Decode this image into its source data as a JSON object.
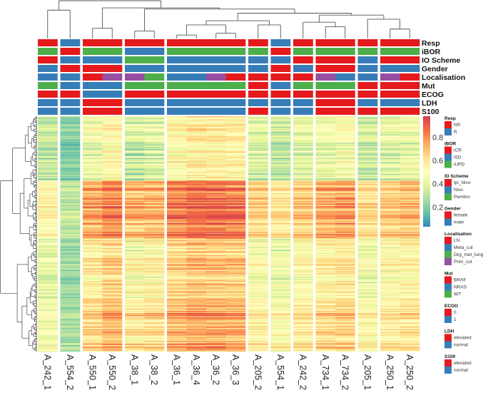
{
  "chart_data": {
    "type": "heatmap",
    "title": "",
    "columns": [
      "A_242_1",
      "A_554_2",
      "A_550_1",
      "A_550_2",
      "A_38_1",
      "A_38_2",
      "A_36_1",
      "A_36_4",
      "A_36_2",
      "A_36_3",
      "A_205_2",
      "A_554_1",
      "A_242_2",
      "A_734_1",
      "A_734_2",
      "A_205_1",
      "A_250_1",
      "A_250_2"
    ],
    "column_groups": [
      [
        "A_242_1"
      ],
      [
        "A_554_2"
      ],
      [
        "A_550_1",
        "A_550_2"
      ],
      [
        "A_38_1",
        "A_38_2"
      ],
      [
        "A_36_1",
        "A_36_4",
        "A_36_2",
        "A_36_3"
      ],
      [
        "A_205_2"
      ],
      [
        "A_554_1"
      ],
      [
        "A_242_2"
      ],
      [
        "A_734_1",
        "A_734_2"
      ],
      [
        "A_205_1"
      ],
      [
        "A_250_1",
        "A_250_2"
      ]
    ],
    "column_mean_expression": [
      0.42,
      0.25,
      0.58,
      0.66,
      0.52,
      0.55,
      0.66,
      0.7,
      0.7,
      0.68,
      0.5,
      0.45,
      0.52,
      0.57,
      0.6,
      0.47,
      0.52,
      0.55
    ],
    "column_dendrogram": {
      "h": 10,
      "c": [
        {
          "h": 7.5,
          "c": [
            "A_242_1",
            "A_554_2"
          ]
        },
        {
          "h": 8.1,
          "c": [
            {
              "h": 2.7,
              "c": [
                "A_550_1",
                "A_550_2"
              ]
            },
            {
              "h": 7.8,
              "c": [
                {
                  "h": 2.0,
                  "c": [
                    "A_38_1",
                    "A_38_2"
                  ]
                },
                {
                  "h": 6.7,
                  "c": [
                    {
                      "h": 4.7,
                      "c": [
                        {
                          "h": 3.6,
                          "c": [
                            {
                              "h": 0.9,
                              "c": [
                                "A_36_1",
                                "A_36_4"
                              ]
                            },
                            {
                              "h": 1.4,
                              "c": [
                                "A_36_2",
                                "A_36_3"
                              ]
                            }
                          ]
                        },
                        {
                          "h": 3.6,
                          "c": [
                            "A_205_2",
                            "A_554_1"
                          ]
                        }
                      ]
                    },
                    {
                      "h": 6.2,
                      "c": [
                        {
                          "h": 4.3,
                          "c": [
                            "A_242_2",
                            {
                              "h": 3.1,
                              "c": [
                                "A_734_1",
                                "A_734_2"
                              ]
                            }
                          ]
                        },
                        {
                          "h": 5.1,
                          "c": [
                            "A_205_1",
                            {
                              "h": 2.5,
                              "c": [
                                "A_250_1",
                                "A_250_2"
                              ]
                            }
                          ]
                        }
                      ]
                    }
                  ]
                }
              ]
            }
          ]
        }
      ]
    },
    "colorbar": {
      "ticks": [
        0.8,
        0.6,
        0.4,
        0.2
      ],
      "range": [
        0.03,
        0.98
      ],
      "palette": [
        "#3288bd",
        "#66c2a5",
        "#abdda4",
        "#e6f598",
        "#ffffbf",
        "#fee08b",
        "#fdae61",
        "#f46d43",
        "#d53e4f"
      ]
    }
  },
  "annotations": [
    {
      "name": "Resp",
      "values": [
        "NR",
        "R",
        "NR",
        "NR",
        "NR",
        "NR",
        "NR",
        "NR",
        "NR",
        "NR",
        "NR",
        "R",
        "NR",
        "NR",
        "NR",
        "NR",
        "NR",
        "NR"
      ]
    },
    {
      "name": "iBOR",
      "values": [
        "iUPD",
        "iCR",
        "iUPD",
        "iUPD",
        "iSD",
        "iSD",
        "iUPD",
        "iUPD",
        "iUPD",
        "iUPD",
        "iUPD",
        "iCR",
        "iUPD",
        "iUPD",
        "iUPD",
        "iUPD",
        "iUPD",
        "iUPD"
      ]
    },
    {
      "name": "IO Scheme",
      "values": [
        "Ipi_Nivo",
        "Nivo",
        "Nivo",
        "Nivo",
        "Pembro",
        "Pembro",
        "Nivo",
        "Nivo",
        "Nivo",
        "Nivo",
        "Nivo",
        "Nivo",
        "Ipi_Nivo",
        "Ipi_Nivo",
        "Ipi_Nivo",
        "Nivo",
        "Ipi_Nivo",
        "Ipi_Nivo"
      ]
    },
    {
      "name": "Gender",
      "values": [
        "male",
        "female",
        "female",
        "female",
        "male",
        "male",
        "male",
        "male",
        "male",
        "male",
        "male",
        "female",
        "male",
        "female",
        "female",
        "male",
        "male",
        "male"
      ]
    },
    {
      "name": "Localisation",
      "values": [
        "Meta_cut",
        "Meta_cut",
        "LN",
        "Prim_cut",
        "Prim_cut",
        "Org_met_lung",
        "Meta_cut",
        "Meta_cut",
        "Prim_cut",
        "LN",
        "LN",
        "LN",
        "LN",
        "Prim_cut",
        "Meta_cut",
        "Meta_cut",
        "Prim_cut",
        "LN"
      ]
    },
    {
      "name": "Mut",
      "values": [
        "WT",
        "NRAS",
        "NRAS",
        "NRAS",
        "WT",
        "WT",
        "WT",
        "WT",
        "WT",
        "WT",
        "BRAF",
        "NRAS",
        "WT",
        "WT",
        "WT",
        "BRAF",
        "BRAF",
        "BRAF"
      ]
    },
    {
      "name": "ECOG",
      "values": [
        "0",
        "0",
        "1",
        "1",
        "0",
        "0",
        "0",
        "0",
        "0",
        "0",
        "0",
        "0",
        "0",
        "0",
        "0",
        "0",
        "0",
        "0"
      ]
    },
    {
      "name": "LDH",
      "values": [
        "normal",
        "normal",
        "elevated",
        "elevated",
        "normal",
        "normal",
        "normal",
        "normal",
        "normal",
        "normal",
        "normal",
        "normal",
        "normal",
        "elevated",
        "elevated",
        "normal",
        "normal",
        "normal"
      ]
    },
    {
      "name": "S100",
      "values": [
        "normal",
        "normal",
        "elevated",
        "elevated",
        "normal",
        "normal",
        "normal",
        "normal",
        "normal",
        "normal",
        "elevated",
        "normal",
        "normal",
        "elevated",
        "elevated",
        "elevated",
        "elevated",
        "elevated"
      ]
    }
  ],
  "legend": [
    {
      "title": "Resp",
      "items": [
        {
          "label": "NR",
          "color": "#e41a1c"
        },
        {
          "label": "R",
          "color": "#377eb8"
        }
      ]
    },
    {
      "title": "iBOR",
      "items": [
        {
          "label": "iCR",
          "color": "#e41a1c"
        },
        {
          "label": "iSD",
          "color": "#377eb8"
        },
        {
          "label": "iUPD",
          "color": "#4daf4a"
        }
      ]
    },
    {
      "title": "IO Scheme",
      "items": [
        {
          "label": "Ipi_Nivo",
          "color": "#e41a1c"
        },
        {
          "label": "Nivo",
          "color": "#377eb8"
        },
        {
          "label": "Pembro",
          "color": "#4daf4a"
        }
      ]
    },
    {
      "title": "Gender",
      "items": [
        {
          "label": "female",
          "color": "#e41a1c"
        },
        {
          "label": "male",
          "color": "#377eb8"
        }
      ]
    },
    {
      "title": "Localisation",
      "items": [
        {
          "label": "LN",
          "color": "#e41a1c"
        },
        {
          "label": "Meta_cut",
          "color": "#377eb8"
        },
        {
          "label": "Org_met_lung",
          "color": "#4daf4a"
        },
        {
          "label": "Prim_cut",
          "color": "#984ea3"
        }
      ]
    },
    {
      "title": "Mut",
      "items": [
        {
          "label": "BRAF",
          "color": "#e41a1c"
        },
        {
          "label": "NRAS",
          "color": "#377eb8"
        },
        {
          "label": "WT",
          "color": "#4daf4a"
        }
      ]
    },
    {
      "title": "ECOG",
      "items": [
        {
          "label": "0",
          "color": "#e41a1c"
        },
        {
          "label": "1",
          "color": "#377eb8"
        }
      ]
    },
    {
      "title": "LDH",
      "items": [
        {
          "label": "elevated",
          "color": "#e41a1c"
        },
        {
          "label": "normal",
          "color": "#377eb8"
        }
      ]
    },
    {
      "title": "S100",
      "items": [
        {
          "label": "elevated",
          "color": "#e41a1c"
        },
        {
          "label": "normal",
          "color": "#377eb8"
        }
      ]
    }
  ]
}
